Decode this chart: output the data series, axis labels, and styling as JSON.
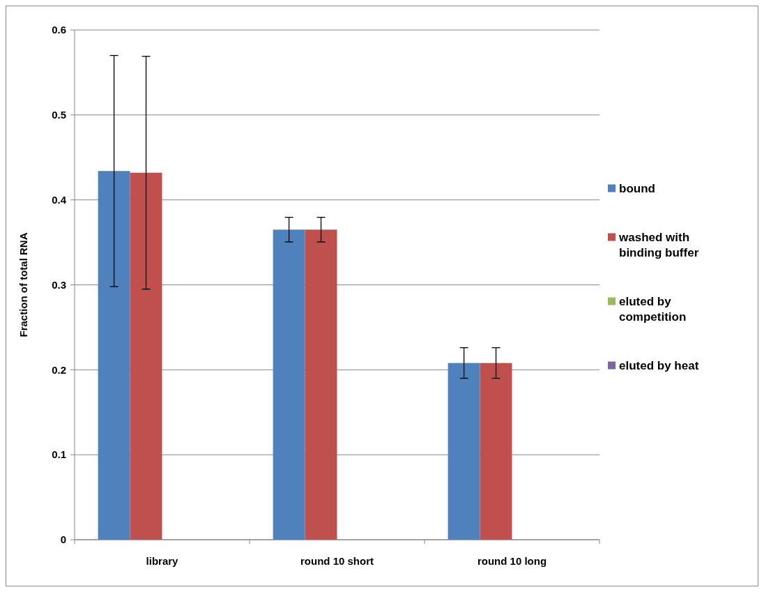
{
  "chart_data": {
    "type": "bar",
    "ylabel": "Fraction of total RNA",
    "categories": [
      "library",
      "round 10 short",
      "round 10 long"
    ],
    "series": [
      {
        "name": "bound",
        "color": "#4f81bd",
        "values": [
          0.434,
          0.365,
          0.208
        ],
        "errors": [
          0.136,
          0.0145,
          0.018
        ]
      },
      {
        "name": "washed with binding buffer",
        "color": "#c0504d",
        "values": [
          0.432,
          0.365,
          0.208
        ],
        "errors": [
          0.137,
          0.0145,
          0.018
        ]
      },
      {
        "name": "eluted by competition",
        "color": "#9bbb59",
        "values": [
          0,
          0,
          0
        ]
      },
      {
        "name": "eluted by heat",
        "color": "#8064a2",
        "values": [
          0,
          0,
          0
        ]
      }
    ],
    "ylim": [
      0,
      0.6
    ],
    "yticks": [
      0,
      0.1,
      0.2,
      0.3,
      0.4,
      0.5,
      0.6
    ],
    "grid": "y",
    "legend": "right"
  }
}
